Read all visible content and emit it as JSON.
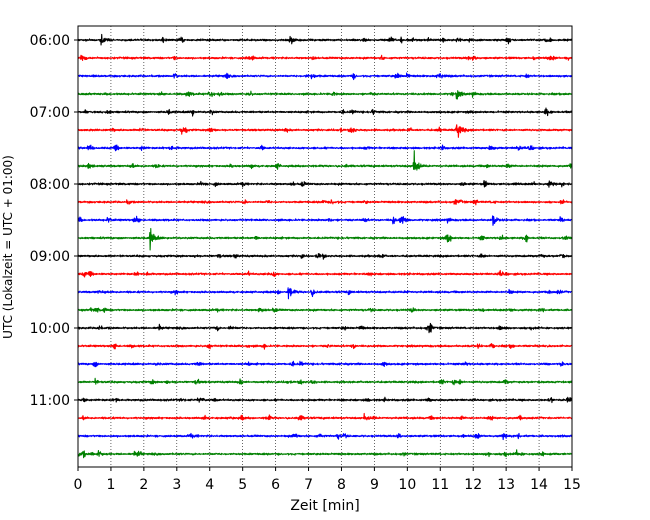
{
  "chart_data": {
    "type": "line",
    "title": "",
    "xlabel": "Zeit  [min]",
    "ylabel": "UTC (Lokalzeit = UTC + 01:00)",
    "xlim": [
      0,
      15
    ],
    "x_ticks": [
      0,
      1,
      2,
      3,
      4,
      5,
      6,
      7,
      8,
      9,
      10,
      11,
      12,
      13,
      14,
      15
    ],
    "x_tick_labels": [
      "0",
      "1",
      "2",
      "3",
      "4",
      "5",
      "6",
      "7",
      "8",
      "9",
      "10",
      "11",
      "12",
      "13",
      "14",
      "15"
    ],
    "y_tick_labels": [
      "06:00",
      "07:00",
      "08:00",
      "09:00",
      "10:00",
      "11:00"
    ],
    "grid": "vertical dotted lines at each minute",
    "color_cycle": [
      "#000000",
      "#ff0000",
      "#0000ff",
      "#008000"
    ],
    "trace_interval_min": 15,
    "traces": [
      {
        "start": "06:00",
        "color": "#000000",
        "events": [
          {
            "t": 0.7,
            "amp": 0.35
          },
          {
            "t": 6.45,
            "amp": 0.35
          },
          {
            "t": 11.5,
            "amp": 0.3
          },
          {
            "t": 14.2,
            "amp": 0.25
          }
        ]
      },
      {
        "start": "06:15",
        "color": "#ff0000",
        "events": [
          {
            "t": 0.1,
            "amp": 0.25
          },
          {
            "t": 12.0,
            "amp": 0.2
          }
        ]
      },
      {
        "start": "06:30",
        "color": "#0000ff",
        "events": [
          {
            "t": 7.1,
            "amp": 0.25
          },
          {
            "t": 11.0,
            "amp": 0.2
          }
        ]
      },
      {
        "start": "06:45",
        "color": "#008000",
        "events": [
          {
            "t": 3.3,
            "amp": 0.25
          },
          {
            "t": 11.5,
            "amp": 0.35
          }
        ]
      },
      {
        "start": "07:00",
        "color": "#000000",
        "events": [
          {
            "t": 14.2,
            "amp": 0.3
          }
        ]
      },
      {
        "start": "07:15",
        "color": "#ff0000",
        "events": [
          {
            "t": 11.5,
            "amp": 0.75
          },
          {
            "t": 4.0,
            "amp": 0.25
          }
        ]
      },
      {
        "start": "07:30",
        "color": "#0000ff",
        "events": [
          {
            "t": 2.8,
            "amp": 0.2
          },
          {
            "t": 12.5,
            "amp": 0.2
          }
        ]
      },
      {
        "start": "07:45",
        "color": "#008000",
        "events": [
          {
            "t": 10.2,
            "amp": 1.0
          },
          {
            "t": 0.3,
            "amp": 0.25
          }
        ]
      },
      {
        "start": "08:00",
        "color": "#000000",
        "events": [
          {
            "t": 14.3,
            "amp": 0.25
          }
        ]
      },
      {
        "start": "08:15",
        "color": "#ff0000",
        "events": [
          {
            "t": 7.7,
            "amp": 0.25
          }
        ]
      },
      {
        "start": "08:30",
        "color": "#0000ff",
        "events": [
          {
            "t": 9.8,
            "amp": 0.45
          },
          {
            "t": 12.6,
            "amp": 0.4
          }
        ]
      },
      {
        "start": "08:45",
        "color": "#008000",
        "events": [
          {
            "t": 2.2,
            "amp": 0.75
          }
        ]
      },
      {
        "start": "09:00",
        "color": "#000000",
        "events": []
      },
      {
        "start": "09:15",
        "color": "#ff0000",
        "events": []
      },
      {
        "start": "09:30",
        "color": "#0000ff",
        "events": [
          {
            "t": 6.4,
            "amp": 0.5
          },
          {
            "t": 7.1,
            "amp": 0.2
          }
        ]
      },
      {
        "start": "09:45",
        "color": "#008000",
        "events": [
          {
            "t": 5.5,
            "amp": 0.2
          }
        ]
      },
      {
        "start": "10:00",
        "color": "#000000",
        "events": [
          {
            "t": 4.6,
            "amp": 0.2
          },
          {
            "t": 10.6,
            "amp": 0.2
          }
        ]
      },
      {
        "start": "10:15",
        "color": "#ff0000",
        "events": []
      },
      {
        "start": "10:30",
        "color": "#0000ff",
        "events": []
      },
      {
        "start": "10:45",
        "color": "#008000",
        "events": [
          {
            "t": 0.5,
            "amp": 0.2
          },
          {
            "t": 2.7,
            "amp": 0.2
          }
        ]
      },
      {
        "start": "11:00",
        "color": "#000000",
        "events": [
          {
            "t": 14.85,
            "amp": 0.3
          }
        ]
      },
      {
        "start": "11:15",
        "color": "#ff0000",
        "events": [
          {
            "t": 6.7,
            "amp": 0.25
          },
          {
            "t": 8.7,
            "amp": 0.25
          }
        ]
      },
      {
        "start": "11:30",
        "color": "#0000ff",
        "events": [
          {
            "t": 3.4,
            "amp": 0.25
          },
          {
            "t": 12.9,
            "amp": 0.25
          }
        ]
      },
      {
        "start": "11:45",
        "color": "#008000",
        "events": [
          {
            "t": 0.6,
            "amp": 0.25
          },
          {
            "t": 13.3,
            "amp": 0.25
          }
        ]
      }
    ]
  }
}
